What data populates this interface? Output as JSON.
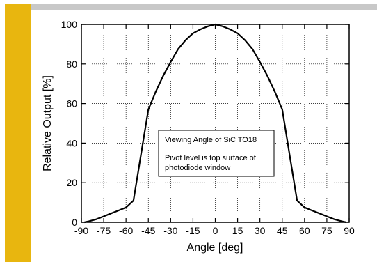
{
  "theme": {
    "accent_color": "#E8B60F",
    "rule_color": "#C8C8C8",
    "line_color": "#000000",
    "grid_color": "#000000"
  },
  "chart_data": {
    "type": "line",
    "title": "",
    "xlabel": "Angle [deg]",
    "ylabel": "Relative Output [%]",
    "xlim": [
      -90,
      90
    ],
    "ylim": [
      0,
      100
    ],
    "xticks": [
      -90,
      -75,
      -60,
      -45,
      -30,
      -15,
      0,
      15,
      30,
      45,
      60,
      75,
      90
    ],
    "yticks": [
      0,
      20,
      40,
      60,
      80,
      100
    ],
    "grid": true,
    "legend": "none",
    "series": [
      {
        "x": [
          -88,
          -85,
          -80,
          -75,
          -70,
          -65,
          -60,
          -55,
          -50,
          -45,
          -40,
          -35,
          -30,
          -25,
          -20,
          -15,
          -10,
          -5,
          0,
          5,
          10,
          15,
          20,
          25,
          30,
          35,
          40,
          45,
          50,
          55,
          60,
          65,
          70,
          75,
          80,
          85,
          88
        ],
        "y": [
          0,
          0.5,
          1.5,
          3,
          4.5,
          6,
          7.5,
          11,
          34,
          57,
          66,
          74,
          81,
          87.5,
          92,
          95.5,
          97.5,
          99,
          100,
          99,
          97.5,
          95.5,
          92,
          87.5,
          81,
          74,
          66,
          57,
          34,
          11,
          7.5,
          6,
          4.5,
          3,
          1.5,
          0.5,
          0
        ]
      }
    ],
    "annotation": {
      "title": "Viewing Angle of SiC TO18",
      "lines": [
        "Pivot level is top surface of",
        "photodiode window"
      ]
    }
  }
}
